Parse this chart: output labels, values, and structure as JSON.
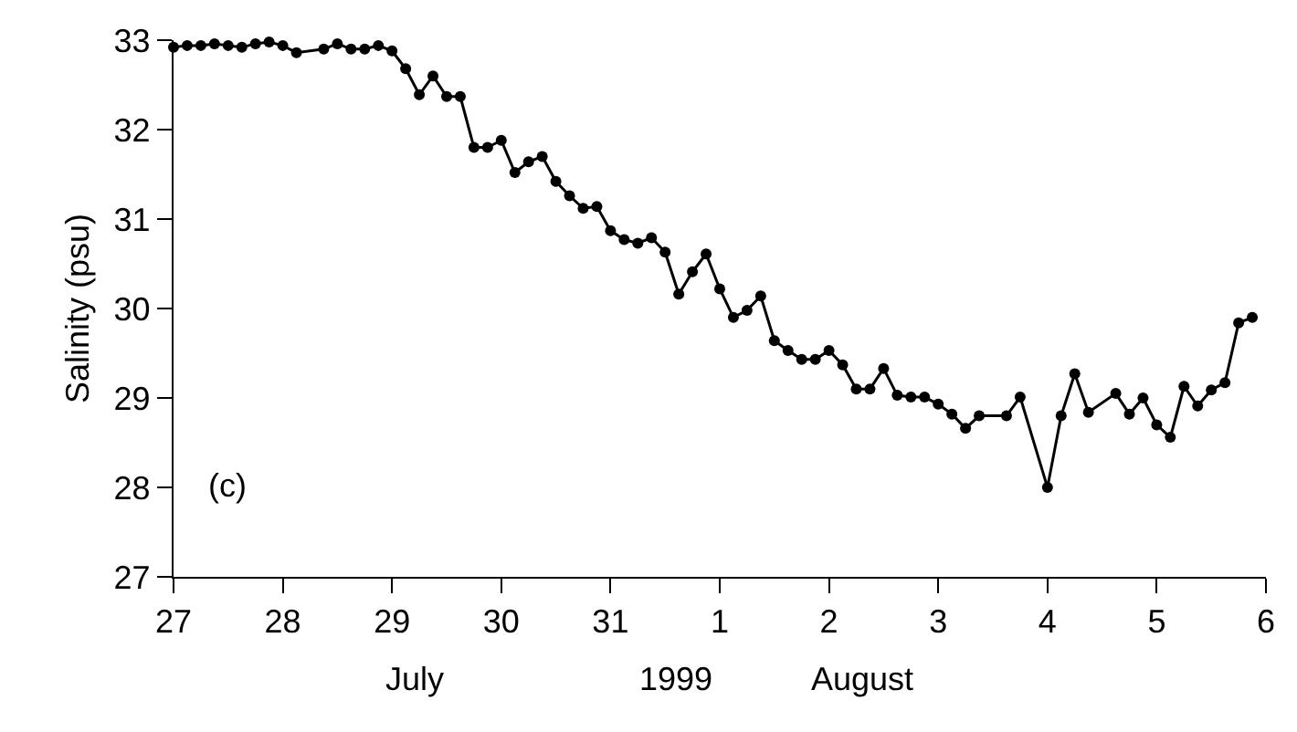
{
  "chart_data": {
    "type": "line",
    "ylabel": "Salinity (psu)",
    "marker": "circle",
    "line_style": "solid",
    "x": [
      "1999-07-27T00:00",
      "1999-07-27T03:00",
      "1999-07-27T06:00",
      "1999-07-27T09:00",
      "1999-07-27T12:00",
      "1999-07-27T15:00",
      "1999-07-27T18:00",
      "1999-07-27T21:00",
      "1999-07-28T00:00",
      "1999-07-28T03:00",
      "1999-07-28T09:00",
      "1999-07-28T12:00",
      "1999-07-28T15:00",
      "1999-07-28T18:00",
      "1999-07-28T21:00",
      "1999-07-29T00:00",
      "1999-07-29T03:00",
      "1999-07-29T06:00",
      "1999-07-29T09:00",
      "1999-07-29T12:00",
      "1999-07-29T15:00",
      "1999-07-29T18:00",
      "1999-07-29T21:00",
      "1999-07-30T00:00",
      "1999-07-30T03:00",
      "1999-07-30T06:00",
      "1999-07-30T09:00",
      "1999-07-30T12:00",
      "1999-07-30T15:00",
      "1999-07-30T18:00",
      "1999-07-30T21:00",
      "1999-07-31T00:00",
      "1999-07-31T03:00",
      "1999-07-31T06:00",
      "1999-07-31T09:00",
      "1999-07-31T12:00",
      "1999-07-31T15:00",
      "1999-07-31T18:00",
      "1999-07-31T21:00",
      "1999-08-01T00:00",
      "1999-08-01T03:00",
      "1999-08-01T06:00",
      "1999-08-01T09:00",
      "1999-08-01T12:00",
      "1999-08-01T15:00",
      "1999-08-01T18:00",
      "1999-08-01T21:00",
      "1999-08-02T00:00",
      "1999-08-02T03:00",
      "1999-08-02T06:00",
      "1999-08-02T09:00",
      "1999-08-02T12:00",
      "1999-08-02T15:00",
      "1999-08-02T18:00",
      "1999-08-02T21:00",
      "1999-08-03T00:00",
      "1999-08-03T03:00",
      "1999-08-03T06:00",
      "1999-08-03T09:00",
      "1999-08-03T15:00",
      "1999-08-03T18:00",
      "1999-08-04T00:00",
      "1999-08-04T03:00",
      "1999-08-04T06:00",
      "1999-08-04T09:00",
      "1999-08-04T15:00",
      "1999-08-04T18:00",
      "1999-08-04T21:00",
      "1999-08-05T00:00",
      "1999-08-05T03:00",
      "1999-08-05T06:00",
      "1999-08-05T09:00",
      "1999-08-05T12:00",
      "1999-08-05T15:00",
      "1999-08-05T18:00",
      "1999-08-05T21:00"
    ],
    "series": [
      {
        "color": "#000000",
        "values": [
          32.92,
          32.94,
          32.94,
          32.96,
          32.94,
          32.92,
          32.96,
          32.98,
          32.94,
          32.86,
          32.9,
          32.96,
          32.9,
          32.9,
          32.94,
          32.88,
          32.68,
          32.39,
          32.6,
          32.37,
          32.37,
          31.8,
          31.8,
          31.88,
          31.52,
          31.64,
          31.7,
          31.42,
          31.26,
          31.12,
          31.14,
          30.87,
          30.77,
          30.73,
          30.79,
          30.63,
          30.16,
          30.41,
          30.61,
          30.22,
          29.9,
          29.98,
          30.14,
          29.64,
          29.53,
          29.43,
          29.43,
          29.53,
          29.37,
          29.1,
          29.1,
          29.33,
          29.03,
          29.01,
          29.01,
          28.93,
          28.82,
          28.66,
          28.8,
          28.8,
          29.01,
          28.0,
          28.8,
          29.27,
          28.84,
          29.05,
          28.82,
          29.0,
          28.7,
          28.56,
          29.13,
          28.91,
          29.09,
          29.17,
          29.84,
          29.9
        ]
      }
    ],
    "xlim": [
      "1999-07-27",
      "1999-08-06"
    ],
    "xticks": [
      {
        "value": "1999-07-27",
        "label": "27"
      },
      {
        "value": "1999-07-28",
        "label": "28"
      },
      {
        "value": "1999-07-29",
        "label": "29"
      },
      {
        "value": "1999-07-30",
        "label": "30"
      },
      {
        "value": "1999-07-31",
        "label": "31"
      },
      {
        "value": "1999-08-01",
        "label": "1"
      },
      {
        "value": "1999-08-02",
        "label": "2"
      },
      {
        "value": "1999-08-03",
        "label": "3"
      },
      {
        "value": "1999-08-04",
        "label": "4"
      },
      {
        "value": "1999-08-05",
        "label": "5"
      },
      {
        "value": "1999-08-06",
        "label": "6"
      }
    ],
    "ylim": [
      27,
      33
    ],
    "yticks": [
      27,
      28,
      29,
      30,
      31,
      32,
      33
    ],
    "annotations": [
      "(c)",
      "July",
      "1999",
      "August"
    ]
  }
}
